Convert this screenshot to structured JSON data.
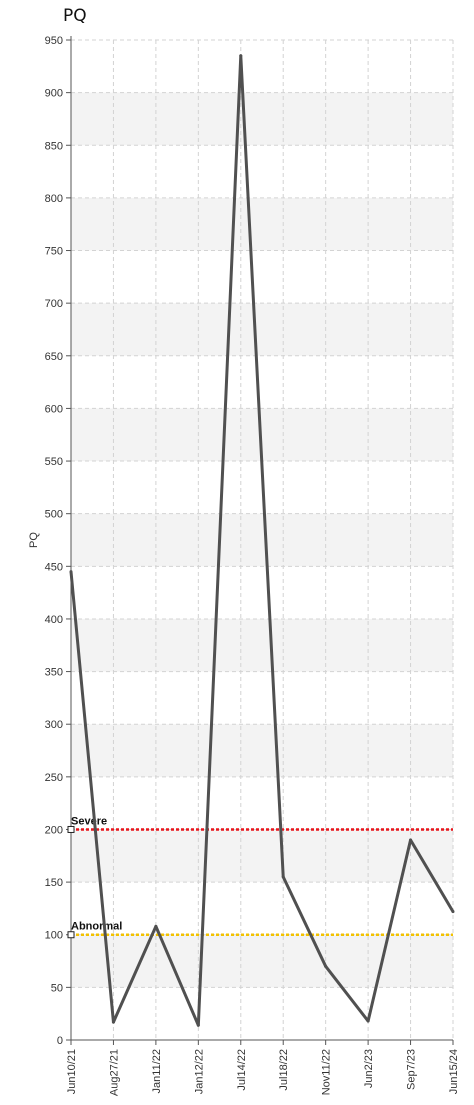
{
  "chart_data": {
    "type": "line",
    "title": "PQ",
    "ylabel": "PQ",
    "xlabel": "",
    "ylim": [
      0,
      950
    ],
    "yticks": [
      0,
      50,
      100,
      150,
      200,
      250,
      300,
      350,
      400,
      450,
      500,
      550,
      600,
      650,
      700,
      750,
      800,
      850,
      900,
      950
    ],
    "categories": [
      "Jun10/21",
      "Aug27/21",
      "Jan11/22",
      "Jan12/22",
      "Jul14/22",
      "Jul18/22",
      "Nov11/22",
      "Jun2/23",
      "Sep7/23",
      "Jun15/24"
    ],
    "series": [
      {
        "values": [
          445,
          17,
          108,
          14,
          935,
          155,
          70,
          18,
          190,
          122
        ],
        "color": "#505050"
      }
    ],
    "reference_lines": [
      {
        "label": "Severe",
        "value": 200,
        "color": "#e8141b"
      },
      {
        "label": "Abnormal",
        "value": 100,
        "color": "#f2c200"
      }
    ],
    "grid": true
  }
}
